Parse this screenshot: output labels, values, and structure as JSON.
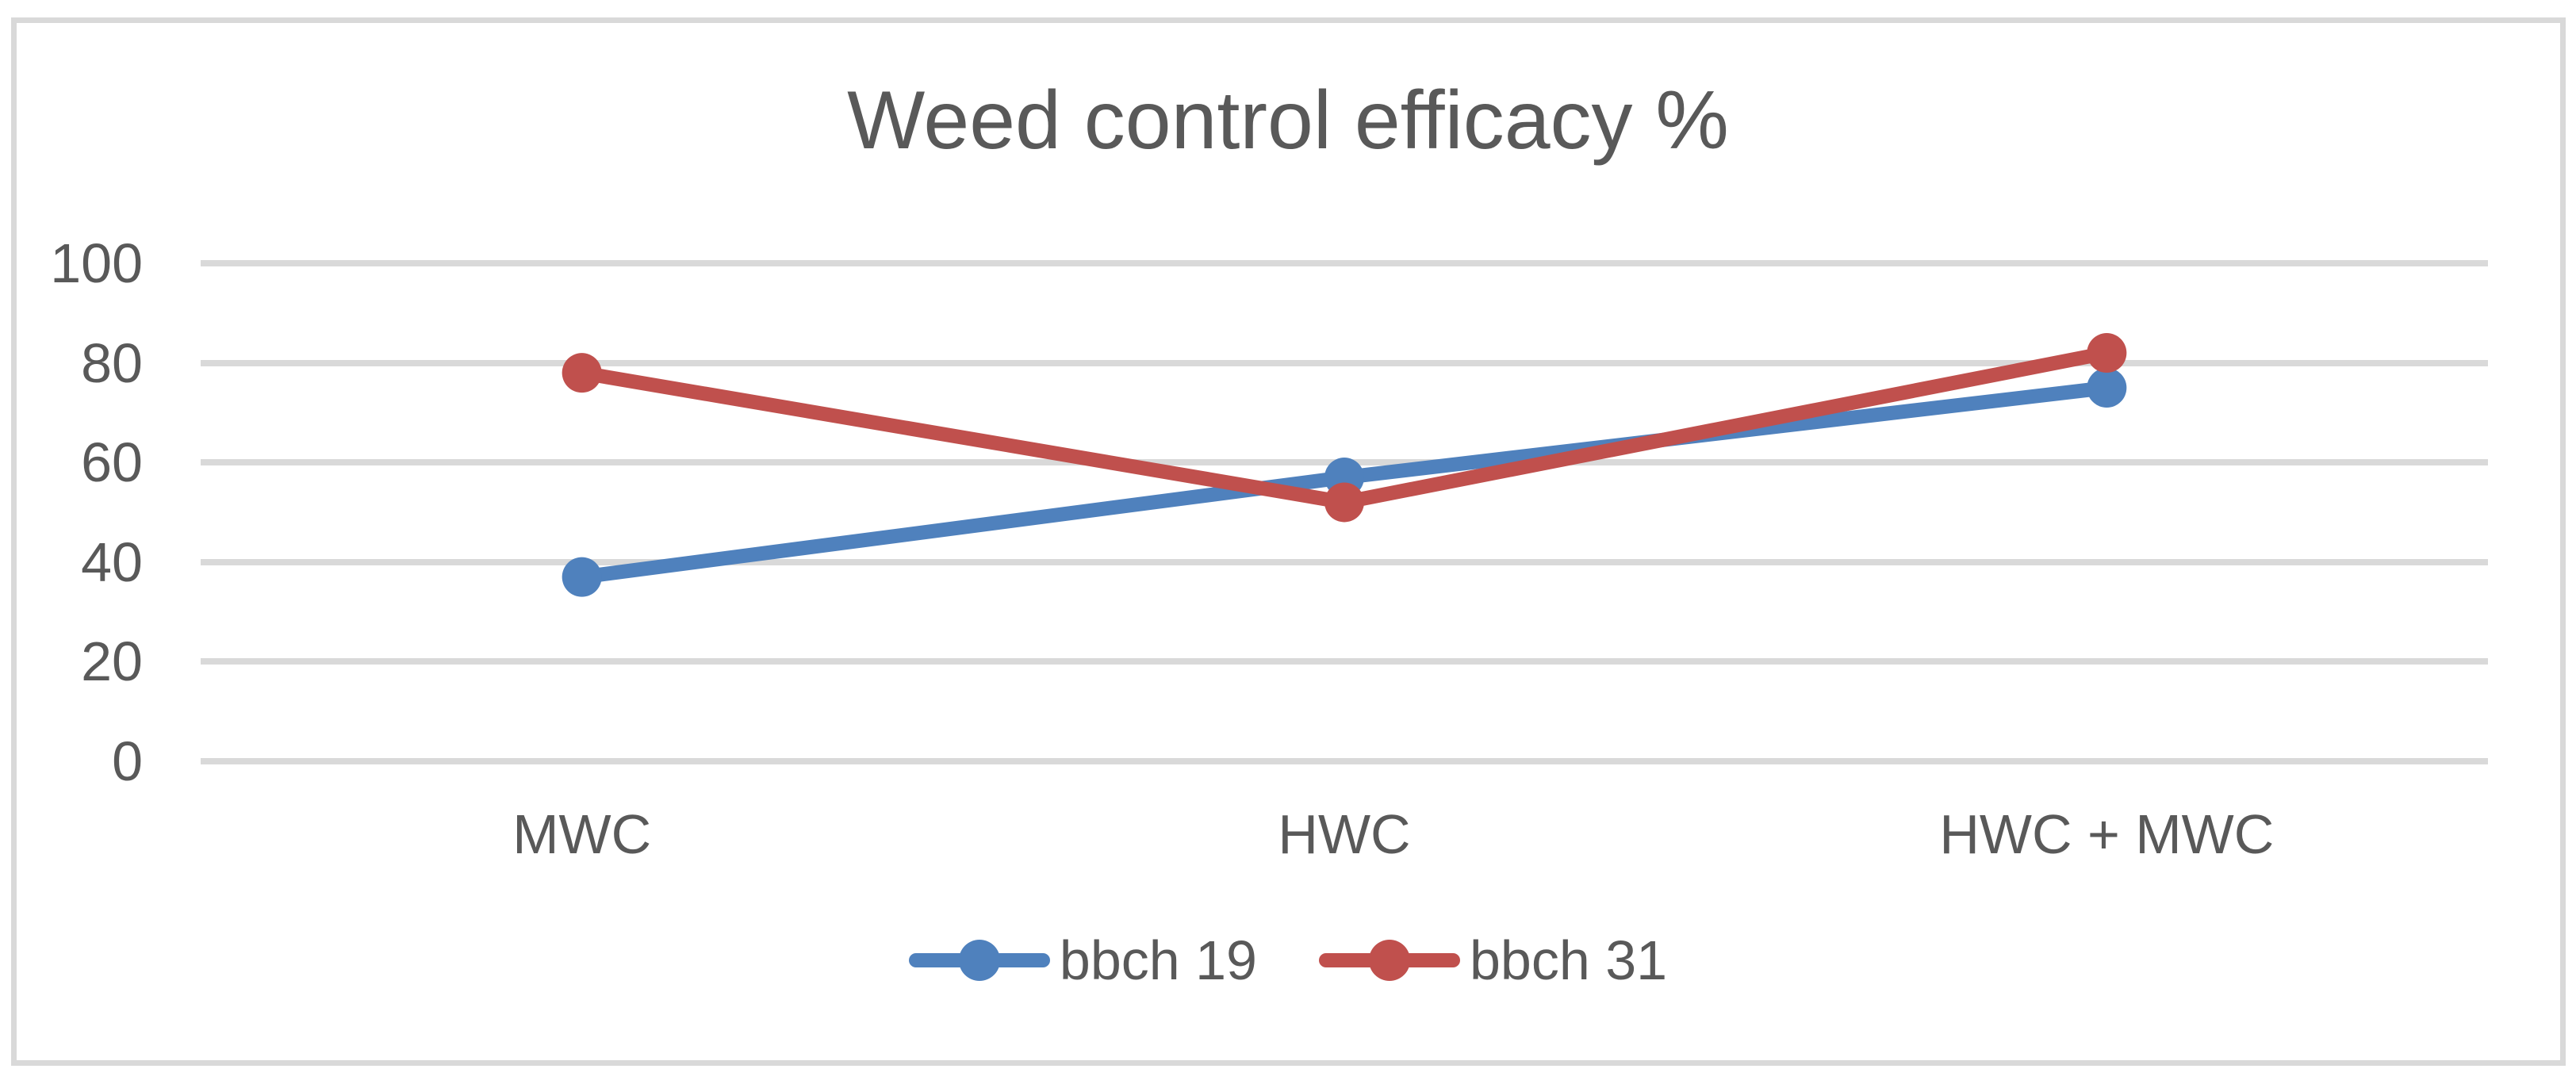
{
  "chart_data": {
    "type": "line",
    "title": "Weed control efficacy %",
    "categories": [
      "MWC",
      "HWC",
      "HWC + MWC"
    ],
    "series": [
      {
        "name": "bbch 19",
        "color": "#4F81BD",
        "values": [
          37,
          57,
          75
        ]
      },
      {
        "name": "bbch 31",
        "color": "#C0504D",
        "values": [
          78,
          52,
          82
        ]
      }
    ],
    "xlabel": "",
    "ylabel": "",
    "ylim": [
      0,
      100
    ],
    "y_ticks": [
      100,
      80,
      60,
      40,
      20,
      0
    ],
    "grid": "horizontal",
    "legend_position": "bottom",
    "marker": "circle",
    "colors": {
      "text": "#595959",
      "gridline": "#D9D9D9",
      "frame_border": "#D9D9D9",
      "background": "#FFFFFF"
    }
  }
}
